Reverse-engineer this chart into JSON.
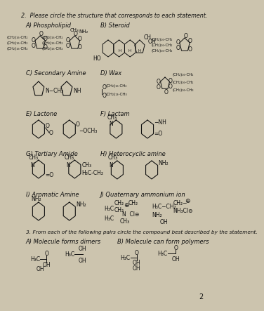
{
  "title": "2.  Please circle the structure that corresponds to each statement.",
  "bg_color": "#ccc4ae",
  "text_color": "#111111",
  "page_number": "2",
  "footer": "3. From each of the following pairs circle the compound best described by the statement.",
  "footer_a": "A) Molecule forms dimers",
  "footer_b": "B) Molecule can form polymers"
}
